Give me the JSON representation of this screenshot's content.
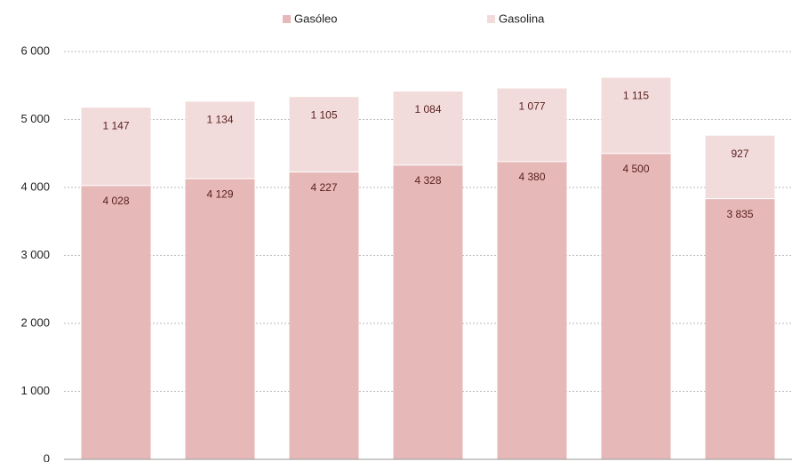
{
  "chart_data": {
    "type": "bar",
    "stacked": true,
    "categories": [
      null,
      null,
      null,
      null,
      null,
      null,
      null
    ],
    "series": [
      {
        "name": "Gasóleo",
        "color": "#e6b8b7",
        "values": [
          4028,
          4129,
          4227,
          4328,
          4380,
          4500,
          3835
        ],
        "value_labels": [
          "4 028",
          "4 129",
          "4 227",
          "4 328",
          "4 380",
          "4 500",
          "3 835"
        ]
      },
      {
        "name": "Gasolina",
        "color": "#f2dcdb",
        "values": [
          1147,
          1134,
          1105,
          1084,
          1077,
          1115,
          927
        ],
        "value_labels": [
          "1 147",
          "1 134",
          "1 105",
          "1 084",
          "1 077",
          "1 115",
          "927"
        ]
      }
    ],
    "ylim": [
      0,
      6000
    ],
    "yticks": [
      0,
      {
        "value": 1000,
        "label": "1 000"
      },
      {
        "value": 2000,
        "label": "2 000"
      },
      {
        "value": 3000,
        "label": "3 000"
      },
      {
        "value": 4000,
        "label": "4 000"
      },
      {
        "value": 5000,
        "label": "5 000"
      },
      {
        "value": 6000,
        "label": "6 000"
      }
    ],
    "grid": true,
    "legend": "top"
  }
}
